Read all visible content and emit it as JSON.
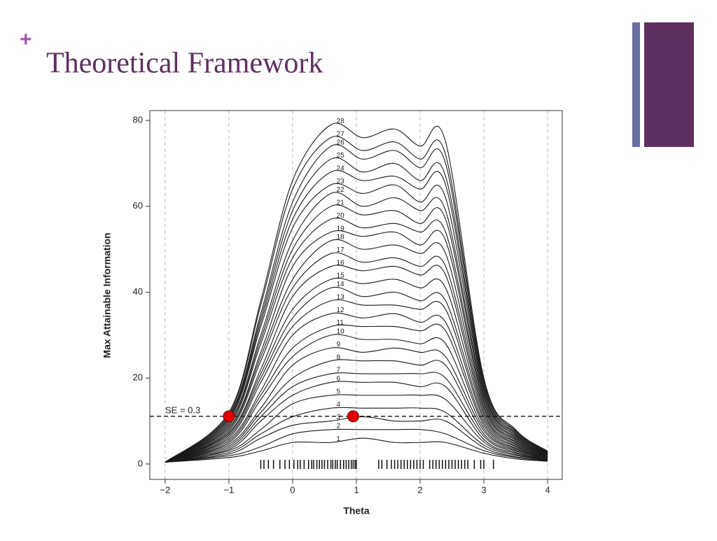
{
  "slide_title": "Theoretical Framework",
  "slide_mark": "+",
  "chart_data": {
    "type": "line",
    "x": [
      -2,
      -1,
      -0.5,
      0,
      0.6,
      1.1,
      1.6,
      2.0,
      2.4,
      3,
      3.5,
      4
    ],
    "x_label": "Theta",
    "y_label": "Max Attainable Information",
    "xlim": [
      -2.24,
      4.23
    ],
    "ylim": [
      -3.6,
      82.3
    ],
    "xticks": [
      {
        "value": -2,
        "label": "−2"
      },
      {
        "value": -1,
        "label": "−1"
      },
      0,
      1,
      2,
      3,
      4
    ],
    "yticks": [
      0,
      20,
      40,
      60,
      80
    ],
    "grid": true,
    "line_color": "#1a1a1a",
    "series": [
      {
        "name": "1",
        "values": [
          0.4,
          1.5,
          3,
          5,
          5,
          6,
          5,
          5,
          5,
          2.5,
          1.2,
          0.6
        ]
      },
      {
        "name": "2",
        "values": [
          0.4,
          1.9,
          4,
          7,
          8,
          8,
          8,
          8,
          7,
          3.1,
          1.5,
          0.7
        ]
      },
      {
        "name": "3",
        "values": [
          0.4,
          2.3,
          6,
          9,
          10,
          11,
          10,
          10,
          10,
          3.8,
          1.7,
          0.8
        ]
      },
      {
        "name": "4",
        "values": [
          0.4,
          2.7,
          7,
          11,
          13,
          13,
          13,
          13,
          12,
          4.4,
          2,
          0.9
        ]
      },
      {
        "name": "5",
        "values": [
          0.4,
          3.1,
          8,
          14,
          16,
          16,
          16,
          16,
          15,
          5.1,
          2.2,
          1
        ]
      },
      {
        "name": "6",
        "values": [
          0.4,
          3.4,
          10,
          16,
          19,
          19,
          19,
          18,
          18,
          5.7,
          2.5,
          1
        ]
      },
      {
        "name": "7",
        "values": [
          0.4,
          3.8,
          11,
          18,
          21,
          21,
          21,
          21,
          20,
          6.4,
          2.7,
          1.1
        ]
      },
      {
        "name": "8",
        "values": [
          0.4,
          4.2,
          12,
          20,
          24,
          24,
          24,
          23,
          23,
          7,
          3,
          1.2
        ]
      },
      {
        "name": "9",
        "values": [
          0.4,
          4.6,
          13,
          23,
          27,
          26,
          27,
          26,
          25,
          7.7,
          3.2,
          1.3
        ]
      },
      {
        "name": "10",
        "values": [
          0.4,
          5,
          15,
          25,
          30,
          29,
          29,
          28,
          28,
          8.3,
          3.5,
          1.4
        ]
      },
      {
        "name": "11",
        "values": [
          0.4,
          5.4,
          16,
          27,
          32,
          32,
          32,
          31,
          31,
          9,
          3.7,
          1.5
        ]
      },
      {
        "name": "12",
        "values": [
          0.4,
          5.8,
          17,
          30,
          35,
          34,
          35,
          33,
          33,
          9.6,
          4,
          1.6
        ]
      },
      {
        "name": "13",
        "values": [
          0.4,
          6.2,
          19,
          32,
          38,
          37,
          37,
          36,
          36,
          10.3,
          4.2,
          1.7
        ]
      },
      {
        "name": "14",
        "values": [
          0.4,
          6.6,
          20,
          34,
          41,
          39,
          40,
          38,
          38,
          10.9,
          4.5,
          1.8
        ]
      },
      {
        "name": "15",
        "values": [
          0.4,
          7,
          21,
          36,
          43,
          42,
          43,
          41,
          41,
          11.6,
          4.7,
          1.8
        ]
      },
      {
        "name": "16",
        "values": [
          0.4,
          7.3,
          22,
          39,
          46,
          45,
          46,
          44,
          44,
          12.2,
          5,
          1.9
        ]
      },
      {
        "name": "17",
        "values": [
          0.4,
          7.7,
          24,
          41,
          49,
          47,
          48,
          46,
          46,
          12.9,
          5.2,
          2
        ]
      },
      {
        "name": "18",
        "values": [
          0.4,
          8.1,
          25,
          43,
          52,
          50,
          51,
          49,
          49,
          13.5,
          5.5,
          2.1
        ]
      },
      {
        "name": "19",
        "values": [
          0.4,
          8.5,
          26,
          46,
          54,
          53,
          54,
          51,
          52,
          14.2,
          5.7,
          2.2
        ]
      },
      {
        "name": "20",
        "values": [
          0.4,
          8.9,
          28,
          48,
          57,
          55,
          56,
          54,
          54,
          14.8,
          6,
          2.3
        ]
      },
      {
        "name": "21",
        "values": [
          0.4,
          9.3,
          29,
          50,
          60,
          58,
          59,
          56,
          57,
          15.5,
          6.2,
          2.4
        ]
      },
      {
        "name": "22",
        "values": [
          0.4,
          9.7,
          30,
          52,
          63,
          60,
          62,
          59,
          59,
          16.1,
          6.5,
          2.5
        ]
      },
      {
        "name": "23",
        "values": [
          0.4,
          10.1,
          32,
          55,
          65,
          63,
          65,
          61,
          62,
          16.8,
          6.7,
          2.5
        ]
      },
      {
        "name": "24",
        "values": [
          0.4,
          10.5,
          33,
          57,
          68,
          66,
          67,
          64,
          65,
          17.4,
          7,
          2.6
        ]
      },
      {
        "name": "25",
        "values": [
          0.4,
          10.8,
          34,
          59,
          71,
          68,
          70,
          66,
          67,
          18.1,
          7.2,
          2.7
        ]
      },
      {
        "name": "26",
        "values": [
          0.4,
          11.2,
          35,
          61,
          74,
          71,
          73,
          69,
          70,
          18.7,
          7.5,
          2.8
        ]
      },
      {
        "name": "27",
        "values": [
          0.4,
          11.6,
          37,
          64,
          76,
          73,
          75,
          71,
          72,
          19.4,
          7.7,
          2.9
        ]
      },
      {
        "name": "28",
        "values": [
          0.4,
          12,
          38,
          66,
          79,
          76,
          78,
          74,
          75,
          20,
          8,
          3
        ]
      }
    ],
    "reference_line": {
      "label": "SE = 0.3",
      "value": 11.1
    },
    "highlight_points": {
      "color": "#e00000",
      "x": [
        -1,
        0.95
      ],
      "y": [
        11.1,
        11.1
      ]
    },
    "rug": [
      -0.5,
      -0.45,
      -0.38,
      -0.3,
      -0.2,
      -0.12,
      -0.05,
      0.02,
      0.08,
      0.12,
      0.18,
      0.25,
      0.3,
      0.33,
      0.38,
      0.42,
      0.46,
      0.5,
      0.55,
      0.6,
      0.63,
      0.67,
      0.7,
      0.75,
      0.8,
      0.84,
      0.88,
      0.92,
      0.95,
      0.98,
      1.0,
      1.35,
      1.4,
      1.48,
      1.55,
      1.6,
      1.65,
      1.7,
      1.75,
      1.8,
      1.85,
      1.9,
      1.95,
      2.0,
      2.05,
      2.15,
      2.2,
      2.25,
      2.3,
      2.35,
      2.4,
      2.45,
      2.5,
      2.55,
      2.6,
      2.65,
      2.7,
      2.75,
      2.85,
      2.95,
      3.0,
      3.15
    ]
  }
}
